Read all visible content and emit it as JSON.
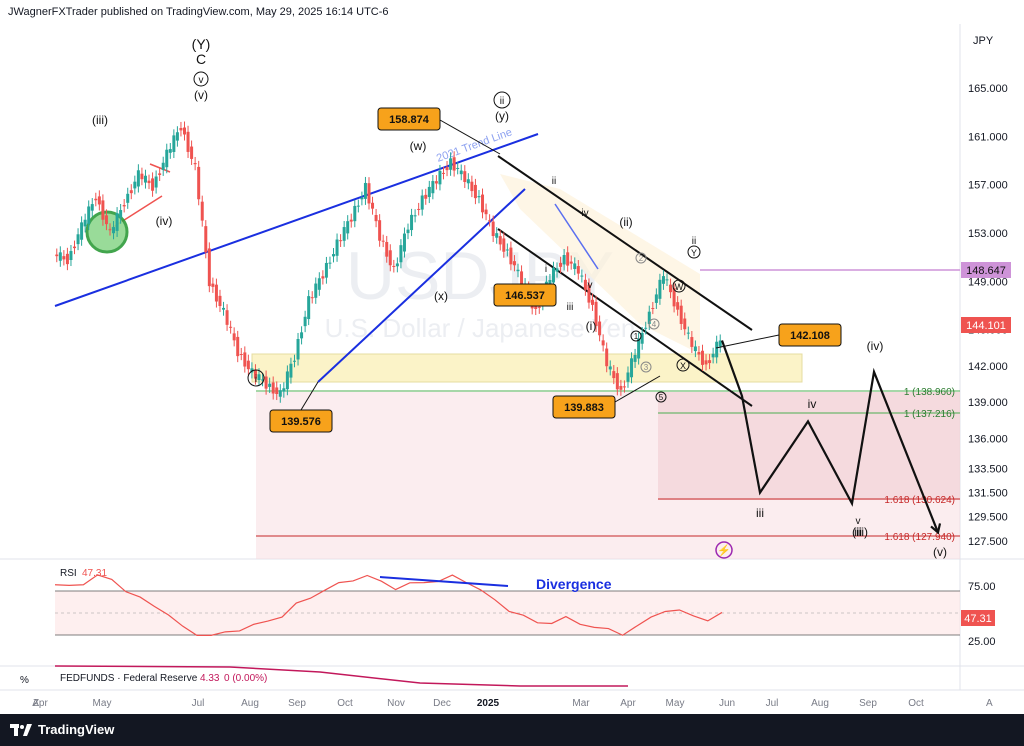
{
  "header": {
    "publisher": "JWagnerFXTrader published on TradingView.com, May 29, 2025 16:14 UTC-6"
  },
  "footer": {
    "brand": "TradingView"
  },
  "price_panel": {
    "currency": "JPY",
    "watermark_symbol": "USDJPY",
    "watermark_name": "U.S. Dollar / Japanese Yen",
    "price_ticks": [
      "165.000",
      "161.000",
      "157.000",
      "153.000",
      "149.000",
      "145.000",
      "142.000",
      "139.000",
      "136.000",
      "133.500",
      "131.500",
      "129.500",
      "127.500"
    ],
    "current_price": "144.101",
    "marked_level": "148.647",
    "trend_line_label": "2021 Trend Line",
    "price_callouts": [
      "158.874",
      "146.537",
      "139.576",
      "139.883",
      "142.108"
    ],
    "fib_levels": [
      "1 (138.960)",
      "1 (137.216)",
      "1.618 (130.624)",
      "1.618 (127.940)"
    ],
    "wave_labels": [
      "(Y)",
      "C",
      "v",
      "(v)",
      "(iii)",
      "(iv)",
      "i",
      "(w)",
      "ii",
      "(y)",
      "(x)",
      "ii",
      "iv",
      "i",
      "iii",
      "v",
      "(i)",
      "(ii)",
      "2",
      "4",
      "1",
      "3",
      "5",
      "X",
      "W",
      "Y",
      "ii",
      "iii",
      "iv",
      "(iv)",
      "iii",
      "v",
      "(iii)",
      "(v)"
    ]
  },
  "time_axis": [
    "Apr",
    "May",
    "Jul",
    "Aug",
    "Sep",
    "Oct",
    "Nov",
    "Dec",
    "2025",
    "Mar",
    "Apr",
    "May",
    "Jun",
    "Jul",
    "Aug",
    "Sep",
    "Oct"
  ],
  "rsi_panel": {
    "label": "RSI",
    "value": "47.31",
    "legend_value": "47.31",
    "ticks": [
      "75.00",
      "25.00"
    ],
    "annotation": "Divergence"
  },
  "fedfunds_panel": {
    "label": "FEDFUNDS · Federal Reserve",
    "value": "4.33",
    "change": "0 (0.00%)"
  },
  "axis_misc": {
    "percent_symbol": "%",
    "z_button": "Z",
    "a_button": "A"
  },
  "chart_data": {
    "type": "line",
    "title": "USDJPY",
    "x_labels": [
      "Apr",
      "May",
      "Jul",
      "Aug",
      "Sep",
      "Oct",
      "Nov",
      "Dec",
      "2025",
      "Mar",
      "Apr",
      "May",
      "Jun",
      "Jul",
      "Aug",
      "Sep",
      "Oct"
    ],
    "ylim": [
      126,
      167
    ],
    "series": [
      {
        "name": "price",
        "values": [
          151.2,
          150.8,
          153.5,
          156.1,
          152.9,
          155.6,
          157.8,
          156.9,
          159.5,
          161.9,
          158.3,
          149.0,
          146.4,
          143.2,
          141.4,
          140.5,
          139.6,
          142.8,
          147.4,
          149.6,
          152.1,
          154.3,
          156.8,
          152.7,
          149.9,
          153.6,
          155.8,
          157.4,
          158.9,
          157.5,
          155.8,
          153.0,
          151.4,
          149.0,
          146.5,
          149.3,
          151.0,
          149.8,
          146.9,
          142.1,
          139.9,
          143.0,
          146.4,
          149.5,
          146.6,
          143.6,
          142.1,
          144.1
        ]
      }
    ],
    "projection": {
      "values": [
        144.1,
        139.5,
        131.5,
        137.4,
        130.6,
        141.5,
        128.2
      ],
      "labels": [
        "",
        "",
        "iii",
        "iv",
        "v (iii)",
        "(iv)",
        "(v)"
      ]
    },
    "rsi": {
      "ylim": [
        15,
        85
      ],
      "values": [
        72,
        70,
        74,
        79,
        76,
        68,
        60,
        55,
        48,
        36,
        32,
        30,
        32,
        36,
        38,
        42,
        47,
        55,
        62,
        68,
        72,
        77,
        79,
        74,
        70,
        72,
        74,
        76,
        78,
        75,
        68,
        58,
        52,
        46,
        40,
        42,
        44,
        40,
        38,
        34,
        32,
        38,
        44,
        52,
        50,
        46,
        44,
        47.31
      ]
    }
  }
}
